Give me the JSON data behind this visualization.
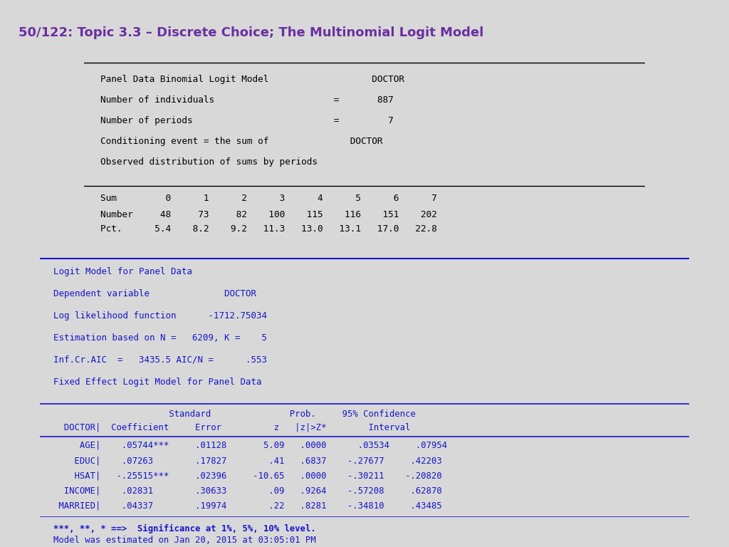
{
  "title": "50/122: Topic 3.3 – Discrete Choice; The Multinomial Logit Model",
  "title_color": "#6B2FA0",
  "header_bg": "#FFFFFF",
  "top_bar_color": "#7B3FA0",
  "left_stripe_color": "#5B2080",
  "bg_color": "#D8D8D8",
  "panel_bg": "#FFFFFF",
  "black_text": "#000000",
  "blue_text": "#1515CC",
  "top_box": {
    "line1": "Panel Data Binomial Logit Model                   DOCTOR",
    "line2": "Number of individuals                      =       887",
    "line3": "Number of periods                          =         7",
    "line4": "Conditioning event = the sum of               DOCTOR",
    "line5": "Observed distribution of sums by periods",
    "sum_row": "Sum         0      1      2      3      4      5      6      7",
    "number_row": "Number     48     73     82    100    115    116    151    202",
    "pct_row": "Pct.      5.4    8.2    9.2   11.3   13.0   13.1   17.0   22.8"
  },
  "bottom_box": {
    "hdr1": "Logit Model for Panel Data",
    "hdr2": "Dependent variable              DOCTOR",
    "hdr3": "Log likelihood function      -1712.75034",
    "hdr4": "Estimation based on N =   6209, K =    5",
    "hdr5": "Inf.Cr.AIC  =   3435.5 AIC/N =      .553",
    "hdr6": "Fixed Effect Logit Model for Panel Data",
    "col1": "                      Standard               Prob.     95% Confidence",
    "col2": "  DOCTOR|  Coefficient     Error          z   |z|>Z*        Interval",
    "row1": "     AGE|    .05744***     .01128       5.09   .0000      .03534     .07954",
    "row2": "    EDUC|    .07263        .17827        .41   .6837    -.27677     .42203",
    "row3": "    HSAT|   -.25515***     .02396     -10.65   .0000    -.30211    -.20820",
    "row4": "  INCOME|    .02831        .30633        .09   .9264    -.57208     .62870",
    "row5": " MARRIED|    .04337        .19974        .22   .8281    -.34810     .43485",
    "foot1": "***, **, * ==>  Significance at 1%, 5%, 10% level.",
    "foot2": "Model was estimated on Jan 20, 2015 at 03:05:01 PM"
  }
}
